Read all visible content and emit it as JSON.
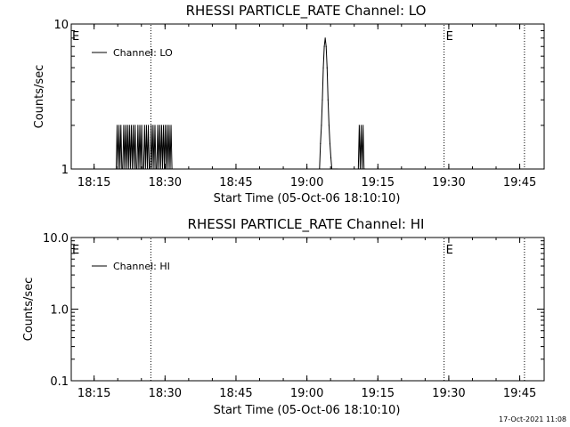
{
  "footer": {
    "timestamp": "17-Oct-2021 11:08"
  },
  "chart_data": [
    {
      "type": "line",
      "title": "RHESSI PARTICLE_RATE Channel: LO",
      "xlabel": "Start Time (05-Oct-06 18:10:10)",
      "ylabel": "Counts/sec",
      "yscale": "log",
      "ylim": [
        1,
        10
      ],
      "ytick_labels": [
        "1",
        "10"
      ],
      "xlim_minutes": [
        0,
        100
      ],
      "xtick_labels": [
        "18:15",
        "18:30",
        "18:45",
        "19:00",
        "19:15",
        "19:30",
        "19:45"
      ],
      "legend": {
        "placement": "top-left",
        "label": "Channel: LO"
      },
      "vlines": [
        {
          "at": "18:27",
          "label": ""
        },
        {
          "at": "19:29",
          "label": "E"
        },
        {
          "at": "19:46",
          "label": ""
        }
      ],
      "corner_label": "E",
      "series": [
        {
          "name": "Channel: LO",
          "x": [
            "18:19:40",
            "18:19:52",
            "18:20:04",
            "18:20:16",
            "18:20:28",
            "18:20:40",
            "18:20:52",
            "18:21:04",
            "18:21:16",
            "18:21:28",
            "18:21:40",
            "18:21:52",
            "18:22:04",
            "18:22:16",
            "18:22:28",
            "18:22:40",
            "18:22:52",
            "18:23:04",
            "18:23:16",
            "18:23:28",
            "18:23:40",
            "18:23:52",
            "18:24:04",
            "18:24:16",
            "18:24:28",
            "18:24:40",
            "18:24:52",
            "18:25:04",
            "18:25:16",
            "18:25:28",
            "18:25:40",
            "18:25:52",
            "18:26:04",
            "18:26:16",
            "18:26:28",
            "18:26:40",
            "18:26:52",
            "18:27:04",
            "18:27:16",
            "18:27:28",
            "18:27:40",
            "18:27:52",
            "18:28:04",
            "18:28:16",
            "18:28:28",
            "18:28:40",
            "18:28:52",
            "18:29:04",
            "18:29:16",
            "18:29:28",
            "18:29:40",
            "18:29:52",
            "18:30:04",
            "18:30:16",
            "18:30:28",
            "18:30:40",
            "18:30:52",
            "18:31:04",
            "18:31:16",
            "18:31:28",
            "19:02:40",
            "19:02:52",
            "19:03:04",
            "19:03:16",
            "19:03:28",
            "19:03:40",
            "19:03:52",
            "19:04:04",
            "19:04:16",
            "19:04:28",
            "19:04:40",
            "19:04:52",
            "19:05:04",
            "19:05:16",
            "19:05:28",
            "19:05:40",
            "19:05:52",
            "19:06:04",
            "19:06:16",
            "19:06:28",
            "19:10:52",
            "19:11:04",
            "19:11:16",
            "19:11:28",
            "19:11:40",
            "19:11:52",
            "19:12:04",
            "19:12:16"
          ],
          "values": [
            1,
            2,
            1,
            2,
            1,
            2,
            1,
            1,
            2,
            1,
            2,
            1,
            2,
            1,
            2,
            1,
            2,
            1,
            2,
            1,
            2,
            1,
            1,
            2,
            1,
            2,
            1,
            2,
            1,
            1,
            2,
            1,
            2,
            1,
            2,
            1,
            1,
            2,
            1,
            2,
            1,
            2,
            1,
            1,
            2,
            1,
            2,
            1,
            2,
            1,
            2,
            1,
            2,
            1,
            2,
            1,
            2,
            1,
            2,
            1,
            1,
            1.5,
            2,
            3,
            5,
            7,
            8,
            7,
            5,
            3,
            2,
            1.5,
            1.2,
            1,
            1,
            1,
            1,
            1,
            1,
            1,
            1,
            2,
            1,
            2,
            1,
            2,
            1,
            1
          ]
        }
      ]
    },
    {
      "type": "line",
      "title": "RHESSI PARTICLE_RATE Channel: HI",
      "xlabel": "Start Time (05-Oct-06 18:10:10)",
      "ylabel": "Counts/sec",
      "yscale": "log",
      "ylim": [
        0.1,
        10
      ],
      "ytick_labels": [
        "0.1",
        "1.0",
        "10.0"
      ],
      "xlim_minutes": [
        0,
        100
      ],
      "xtick_labels": [
        "18:15",
        "18:30",
        "18:45",
        "19:00",
        "19:15",
        "19:30",
        "19:45"
      ],
      "legend": {
        "placement": "top-left",
        "label": "Channel: HI"
      },
      "vlines": [
        {
          "at": "18:27",
          "label": ""
        },
        {
          "at": "19:29",
          "label": "E"
        },
        {
          "at": "19:46",
          "label": ""
        }
      ],
      "corner_label": "E",
      "series": [
        {
          "name": "Channel: HI",
          "x": [],
          "values": []
        }
      ]
    }
  ]
}
